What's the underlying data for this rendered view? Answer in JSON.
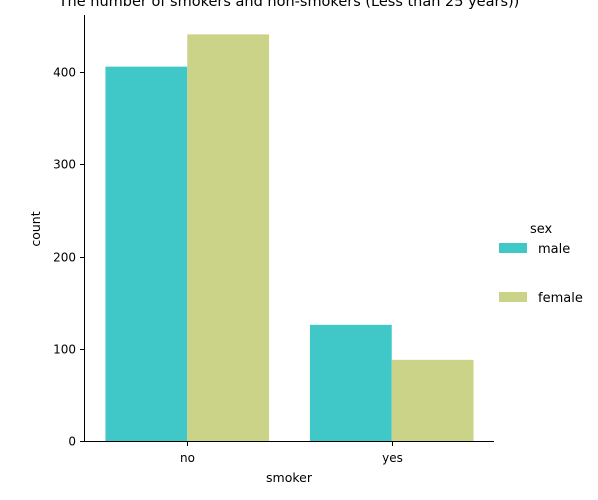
{
  "chart_data": {
    "type": "bar",
    "title": "The number of smokers and non-smokers (Less than 25 years))",
    "xlabel": "smoker",
    "ylabel": "count",
    "categories": [
      "no",
      "yes"
    ],
    "series": [
      {
        "name": "male",
        "color": "#40c7c8",
        "values": [
          406,
          126
        ]
      },
      {
        "name": "female",
        "color": "#cbd389",
        "values": [
          441,
          88
        ]
      }
    ],
    "ylim": [
      0,
      462
    ],
    "yticks": [
      0,
      100,
      200,
      300,
      400
    ],
    "legend": {
      "title": "sex",
      "position": "right"
    },
    "grid": false
  }
}
